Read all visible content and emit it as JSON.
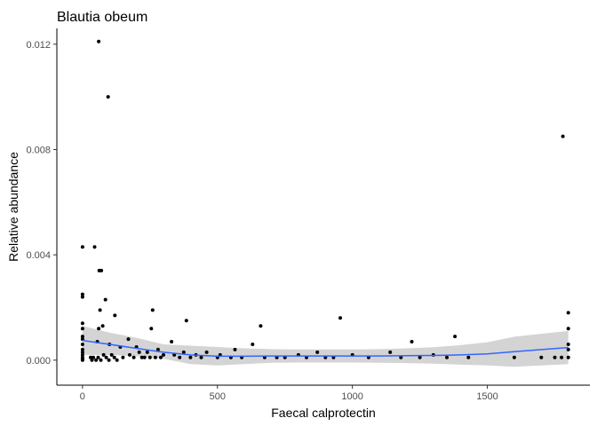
{
  "chart_data": {
    "type": "scatter",
    "title": "Blautia obeum",
    "xlabel": "Faecal calprotectin",
    "ylabel": "Relative abundance",
    "xlim": [
      -95,
      1880
    ],
    "ylim": [
      -0.00095,
      0.0126
    ],
    "x_ticks": [
      {
        "value": 0,
        "label": "0"
      },
      {
        "value": 500,
        "label": "500"
      },
      {
        "value": 1000,
        "label": "1000"
      },
      {
        "value": 1500,
        "label": "1500"
      }
    ],
    "y_ticks": [
      {
        "value": 0,
        "label": "0.000"
      },
      {
        "value": 0.004,
        "label": "0.004"
      },
      {
        "value": 0.008,
        "label": "0.008"
      },
      {
        "value": 0.012,
        "label": "0.012"
      }
    ],
    "grid": false,
    "legend": "none",
    "colors": {
      "points": "#000000",
      "smooth_line": "#3366ff",
      "confidence_band": "#d4d4d4",
      "axis": "#000000",
      "tick_text": "#4d4d4d"
    },
    "points": [
      {
        "x": 0,
        "y": 0.0043
      },
      {
        "x": 0,
        "y": 0.0025
      },
      {
        "x": 0,
        "y": 0.0024
      },
      {
        "x": 0,
        "y": 0.0014
      },
      {
        "x": 0,
        "y": 0.0012
      },
      {
        "x": 0,
        "y": 0.0009
      },
      {
        "x": 0,
        "y": 0.0008
      },
      {
        "x": 0,
        "y": 0.0006
      },
      {
        "x": 0,
        "y": 0.0004
      },
      {
        "x": 0,
        "y": 0.0003
      },
      {
        "x": 0,
        "y": 0.0002
      },
      {
        "x": 0,
        "y": 0.0001
      },
      {
        "x": 0,
        "y": 5e-05
      },
      {
        "x": 0,
        "y": 0.0
      },
      {
        "x": 45,
        "y": 0.0043
      },
      {
        "x": 55,
        "y": 0.0007
      },
      {
        "x": 60,
        "y": 0.0121
      },
      {
        "x": 62,
        "y": 0.0034
      },
      {
        "x": 70,
        "y": 0.0034
      },
      {
        "x": 65,
        "y": 0.0019
      },
      {
        "x": 75,
        "y": 0.0013
      },
      {
        "x": 60,
        "y": 0.0012
      },
      {
        "x": 85,
        "y": 0.0023
      },
      {
        "x": 95,
        "y": 0.01
      },
      {
        "x": 100,
        "y": 0.0006
      },
      {
        "x": 120,
        "y": 0.0017
      },
      {
        "x": 30,
        "y": 0.0001
      },
      {
        "x": 35,
        "y": 0.0
      },
      {
        "x": 40,
        "y": 0.0001
      },
      {
        "x": 50,
        "y": 0.0
      },
      {
        "x": 58,
        "y": 0.0001
      },
      {
        "x": 68,
        "y": 0.0
      },
      {
        "x": 78,
        "y": 0.0002
      },
      {
        "x": 88,
        "y": 0.0001
      },
      {
        "x": 98,
        "y": 0.0
      },
      {
        "x": 108,
        "y": 0.0002
      },
      {
        "x": 118,
        "y": 0.0001
      },
      {
        "x": 128,
        "y": 0.0
      },
      {
        "x": 140,
        "y": 0.0005
      },
      {
        "x": 150,
        "y": 0.0001
      },
      {
        "x": 170,
        "y": 0.0008
      },
      {
        "x": 175,
        "y": 0.0002
      },
      {
        "x": 190,
        "y": 0.0001
      },
      {
        "x": 200,
        "y": 0.0005
      },
      {
        "x": 210,
        "y": 0.0003
      },
      {
        "x": 220,
        "y": 0.0001
      },
      {
        "x": 230,
        "y": 0.0001
      },
      {
        "x": 240,
        "y": 0.0003
      },
      {
        "x": 250,
        "y": 0.0001
      },
      {
        "x": 260,
        "y": 0.0019
      },
      {
        "x": 255,
        "y": 0.0012
      },
      {
        "x": 270,
        "y": 0.0001
      },
      {
        "x": 280,
        "y": 0.0004
      },
      {
        "x": 290,
        "y": 0.0001
      },
      {
        "x": 300,
        "y": 0.0002
      },
      {
        "x": 330,
        "y": 0.0007
      },
      {
        "x": 340,
        "y": 0.0002
      },
      {
        "x": 360,
        "y": 0.0001
      },
      {
        "x": 375,
        "y": 0.0003
      },
      {
        "x": 385,
        "y": 0.0015
      },
      {
        "x": 400,
        "y": 0.0001
      },
      {
        "x": 420,
        "y": 0.0002
      },
      {
        "x": 440,
        "y": 0.0001
      },
      {
        "x": 460,
        "y": 0.0003
      },
      {
        "x": 500,
        "y": 0.0001
      },
      {
        "x": 510,
        "y": 0.0002
      },
      {
        "x": 550,
        "y": 0.0001
      },
      {
        "x": 565,
        "y": 0.0004
      },
      {
        "x": 590,
        "y": 0.0001
      },
      {
        "x": 630,
        "y": 0.0006
      },
      {
        "x": 660,
        "y": 0.0013
      },
      {
        "x": 675,
        "y": 0.0001
      },
      {
        "x": 720,
        "y": 0.0001
      },
      {
        "x": 750,
        "y": 0.0001
      },
      {
        "x": 800,
        "y": 0.0002
      },
      {
        "x": 830,
        "y": 0.0001
      },
      {
        "x": 870,
        "y": 0.0003
      },
      {
        "x": 900,
        "y": 0.0001
      },
      {
        "x": 930,
        "y": 0.0001
      },
      {
        "x": 955,
        "y": 0.0016
      },
      {
        "x": 1000,
        "y": 0.0002
      },
      {
        "x": 1060,
        "y": 0.0001
      },
      {
        "x": 1140,
        "y": 0.0003
      },
      {
        "x": 1180,
        "y": 0.0001
      },
      {
        "x": 1220,
        "y": 0.0007
      },
      {
        "x": 1250,
        "y": 0.0001
      },
      {
        "x": 1300,
        "y": 0.0002
      },
      {
        "x": 1350,
        "y": 0.0001
      },
      {
        "x": 1380,
        "y": 0.0009
      },
      {
        "x": 1430,
        "y": 0.0001
      },
      {
        "x": 1600,
        "y": 0.0001
      },
      {
        "x": 1700,
        "y": 0.0001
      },
      {
        "x": 1750,
        "y": 0.0001
      },
      {
        "x": 1775,
        "y": 0.0001
      },
      {
        "x": 1780,
        "y": 0.0085
      },
      {
        "x": 1800,
        "y": 0.0018
      },
      {
        "x": 1800,
        "y": 0.0012
      },
      {
        "x": 1800,
        "y": 0.0006
      },
      {
        "x": 1800,
        "y": 0.0004
      },
      {
        "x": 1800,
        "y": 0.0001
      }
    ],
    "smooth_line": {
      "x": [
        0,
        100,
        200,
        300,
        400,
        500,
        600,
        700,
        800,
        900,
        1000,
        1100,
        1200,
        1300,
        1400,
        1500,
        1600,
        1700,
        1800
      ],
      "y": [
        0.00075,
        0.0006,
        0.00045,
        0.0003,
        0.0002,
        0.00015,
        0.00015,
        0.00016,
        0.00016,
        0.00016,
        0.00016,
        0.00016,
        0.00017,
        0.00018,
        0.0002,
        0.00024,
        0.00032,
        0.0004,
        0.00048
      ],
      "lower": [
        0.0002,
        0.0002,
        0.00015,
        5e-05,
        -0.00015,
        -0.0002,
        -0.00015,
        -0.0001,
        -9e-05,
        -9e-05,
        -9e-05,
        -0.0001,
        -0.00011,
        -0.00013,
        -0.00017,
        -0.0002,
        -0.00025,
        -0.0002,
        -0.00015
      ],
      "upper": [
        0.0013,
        0.00105,
        0.00085,
        0.0006,
        0.00055,
        0.0005,
        0.00045,
        0.00042,
        0.00041,
        0.00041,
        0.00041,
        0.00042,
        0.00045,
        0.00049,
        0.00057,
        0.00068,
        0.00089,
        0.001,
        0.00111
      ]
    }
  }
}
